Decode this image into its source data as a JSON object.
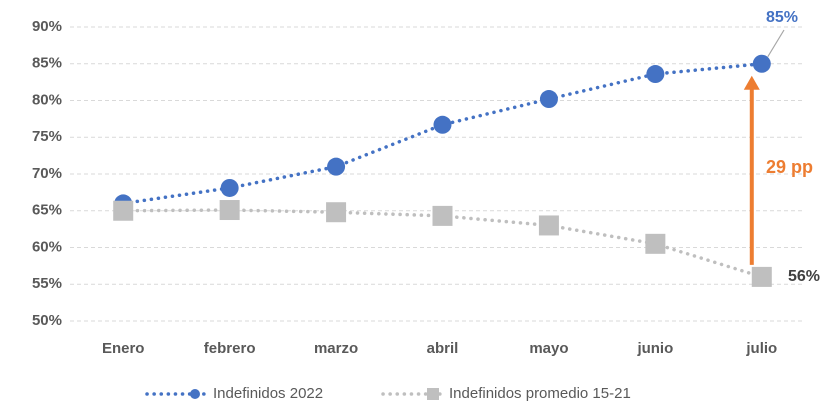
{
  "chart_data": {
    "type": "line",
    "categories": [
      "Enero",
      "febrero",
      "marzo",
      "abril",
      "mayo",
      "junio",
      "julio"
    ],
    "series": [
      {
        "name": "Indefinidos 2022",
        "color": "#4472c4",
        "marker": "circle",
        "values": [
          66,
          68.1,
          71,
          76.7,
          80.2,
          83.6,
          85
        ]
      },
      {
        "name": "Indefinidos promedio 15-21",
        "color": "#bfbfbf",
        "marker": "square",
        "values": [
          65,
          65.1,
          64.8,
          64.3,
          63,
          60.5,
          56
        ]
      }
    ],
    "ylim": [
      50,
      90
    ],
    "yticks": [
      {
        "value": 50,
        "label": "50%"
      },
      {
        "value": 55,
        "label": "55%"
      },
      {
        "value": 60,
        "label": "60%"
      },
      {
        "value": 65,
        "label": "65%"
      },
      {
        "value": 70,
        "label": "70%"
      },
      {
        "value": 75,
        "label": "75%"
      },
      {
        "value": 80,
        "label": "80%"
      },
      {
        "value": 85,
        "label": "85%"
      },
      {
        "value": 90,
        "label": "90%"
      }
    ],
    "grid": true,
    "legend": "bottom",
    "annotations": [
      {
        "text": "85%",
        "color": "#4472c4"
      },
      {
        "text": "56%",
        "color": "#404040"
      },
      {
        "text": "29 pp",
        "color": "#ed7d31"
      }
    ]
  }
}
